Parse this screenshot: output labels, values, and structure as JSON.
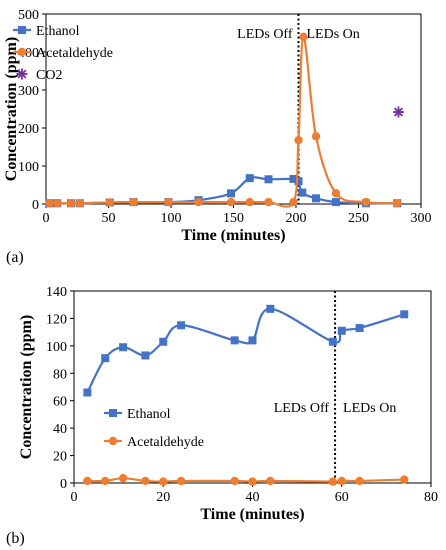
{
  "chart_data": [
    {
      "type": "line",
      "panel_label": "(a)",
      "xlabel": "Time (minutes)",
      "ylabel": "Concentration (ppm)",
      "xlim": [
        0,
        300
      ],
      "ylim": [
        0,
        500
      ],
      "xticks": [
        0,
        50,
        100,
        150,
        200,
        250,
        300
      ],
      "yticks": [
        0,
        100,
        200,
        300,
        400,
        500
      ],
      "grid": false,
      "legend_position": "top-left",
      "annotations": {
        "off": "LEDs Off",
        "on": "LEDs On",
        "divider_x": 202
      },
      "series": [
        {
          "name": "Ethanol",
          "color": "#4472C4",
          "marker": "square",
          "x": [
            3,
            9,
            20,
            27,
            51,
            70,
            98,
            122,
            148,
            163,
            178,
            198,
            202,
            205,
            216,
            232,
            256,
            281
          ],
          "y": [
            2,
            2,
            2,
            2,
            4,
            5,
            5,
            10,
            28,
            68,
            65,
            66,
            60,
            30,
            15,
            5,
            2,
            2
          ]
        },
        {
          "name": "Acetaldehyde",
          "color": "#ED7D31",
          "marker": "circle",
          "x": [
            3,
            9,
            20,
            27,
            51,
            70,
            98,
            122,
            148,
            163,
            178,
            198,
            202,
            206,
            216,
            232,
            256,
            281
          ],
          "y": [
            2,
            2,
            2,
            2,
            4,
            5,
            5,
            5,
            5,
            5,
            5,
            5,
            168,
            440,
            178,
            28,
            5,
            2
          ]
        },
        {
          "name": "CO2",
          "color": "#7030A0",
          "marker": "asterisk",
          "x": [
            282
          ],
          "y": [
            242
          ]
        }
      ]
    },
    {
      "type": "line",
      "panel_label": "(b)",
      "xlabel": "Time (minutes)",
      "ylabel": "Concentration (ppm)",
      "xlim": [
        0,
        80
      ],
      "ylim": [
        0,
        140
      ],
      "xticks": [
        0,
        20,
        40,
        60,
        80
      ],
      "yticks": [
        0,
        20,
        40,
        60,
        80,
        100,
        120,
        140
      ],
      "grid": false,
      "legend_position": "bottom-left",
      "annotations": {
        "off": "LEDs Off",
        "on": "LEDs On",
        "divider_x": 58.5
      },
      "series": [
        {
          "name": "Ethanol",
          "color": "#4472C4",
          "marker": "square",
          "x": [
            3,
            7,
            11,
            16,
            20,
            24,
            36,
            40,
            44,
            58,
            60,
            64,
            74
          ],
          "y": [
            66,
            91,
            99,
            93,
            103,
            115,
            104,
            104,
            127,
            103,
            111,
            113,
            123
          ]
        },
        {
          "name": "Acetaldehyde",
          "color": "#ED7D31",
          "marker": "circle",
          "x": [
            3,
            7,
            11,
            16,
            20,
            24,
            36,
            40,
            44,
            58,
            60,
            64,
            74
          ],
          "y": [
            1.5,
            1.5,
            3.5,
            1.5,
            1,
            1.5,
            1.5,
            1,
            1.5,
            1,
            1.5,
            1.5,
            2.5
          ]
        }
      ]
    }
  ]
}
